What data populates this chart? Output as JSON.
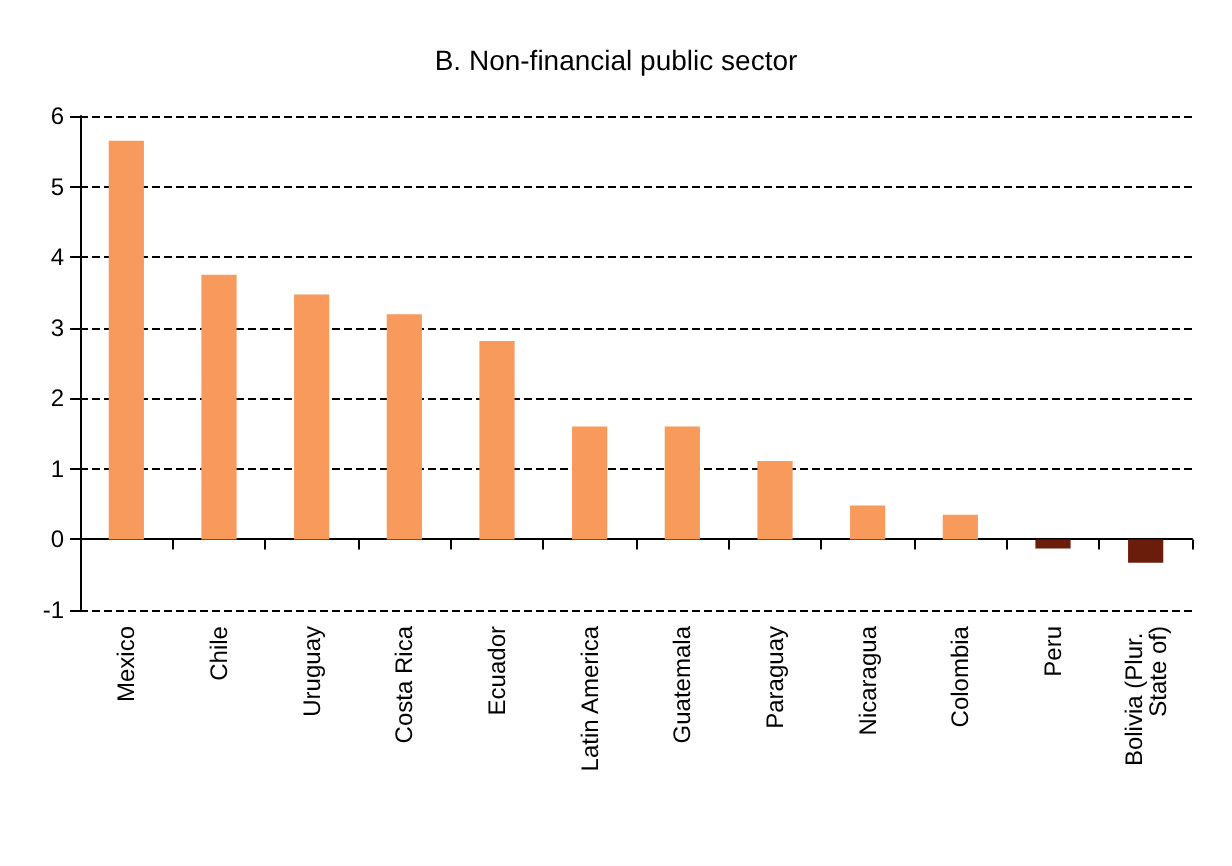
{
  "chart_data": {
    "type": "bar",
    "title": "B. Non-financial public sector",
    "categories": [
      "Mexico",
      "Chile",
      "Uruguay",
      "Costa Rica",
      "Ecuador",
      "Latin America",
      "Guatemala",
      "Paraguay",
      "Nicaragua",
      "Colombia",
      "Peru",
      "Bolivia (Plur. State of)"
    ],
    "values": [
      5.65,
      3.75,
      3.47,
      3.19,
      2.81,
      1.6,
      1.6,
      1.11,
      0.48,
      0.35,
      -0.13,
      -0.33
    ],
    "colors": [
      "#f79a5b",
      "#f79a5b",
      "#f79a5b",
      "#f79a5b",
      "#f79a5b",
      "#f79a5b",
      "#f79a5b",
      "#f79a5b",
      "#f79a5b",
      "#f79a5b",
      "#6b1d0c",
      "#6b1d0c"
    ],
    "ylim": [
      -1,
      6
    ],
    "yticks": [
      -1,
      0,
      1,
      2,
      3,
      4,
      5,
      6
    ],
    "grid": "y"
  }
}
